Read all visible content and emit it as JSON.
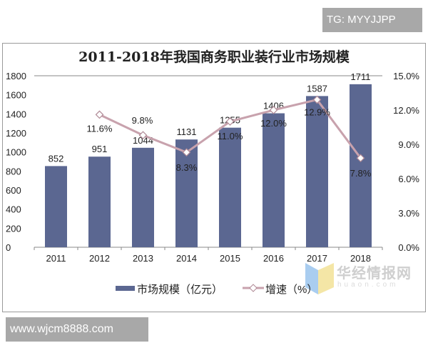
{
  "watermarks": {
    "top_right": "TG: MYYJJPP",
    "bottom_left": "www.wjcm8888.com",
    "brand_cn": "华经情报网",
    "brand_en": "huaon.com"
  },
  "colors": {
    "bar": "#5b6791",
    "line": "#c8a2ad",
    "marker_stroke": "#b08a96"
  },
  "chart_data": {
    "type": "bar",
    "title": "2011-2018年我国商务职业装行业市场规模",
    "categories": [
      "2011",
      "2012",
      "2013",
      "2014",
      "2015",
      "2016",
      "2017",
      "2018"
    ],
    "series": [
      {
        "name": "市场规模（亿元）",
        "type": "bar",
        "axis": "left",
        "values": [
          852,
          951,
          1044,
          1131,
          1255,
          1406,
          1587,
          1711
        ],
        "labels": [
          "852",
          "951",
          "1044",
          "1131",
          "1255",
          "1406",
          "1587",
          "1711"
        ]
      },
      {
        "name": "增速（%）",
        "type": "line",
        "axis": "right",
        "values": [
          null,
          11.6,
          9.8,
          8.3,
          11.0,
          12.0,
          12.9,
          7.8
        ],
        "labels": [
          "",
          "11.6%",
          "9.8%",
          "8.3%",
          "11.0%",
          "12.0%",
          "12.9%",
          "7.8%"
        ]
      }
    ],
    "left_axis": {
      "ylim": [
        0,
        1800
      ],
      "ticks": [
        "0",
        "200",
        "400",
        "600",
        "800",
        "1000",
        "1200",
        "1400",
        "1600",
        "1800"
      ]
    },
    "right_axis": {
      "ylim": [
        0,
        15
      ],
      "ticks": [
        "0.0%",
        "3.0%",
        "6.0%",
        "9.0%",
        "12.0%",
        "15.0%"
      ]
    },
    "grid": false,
    "legend": "bottom"
  }
}
